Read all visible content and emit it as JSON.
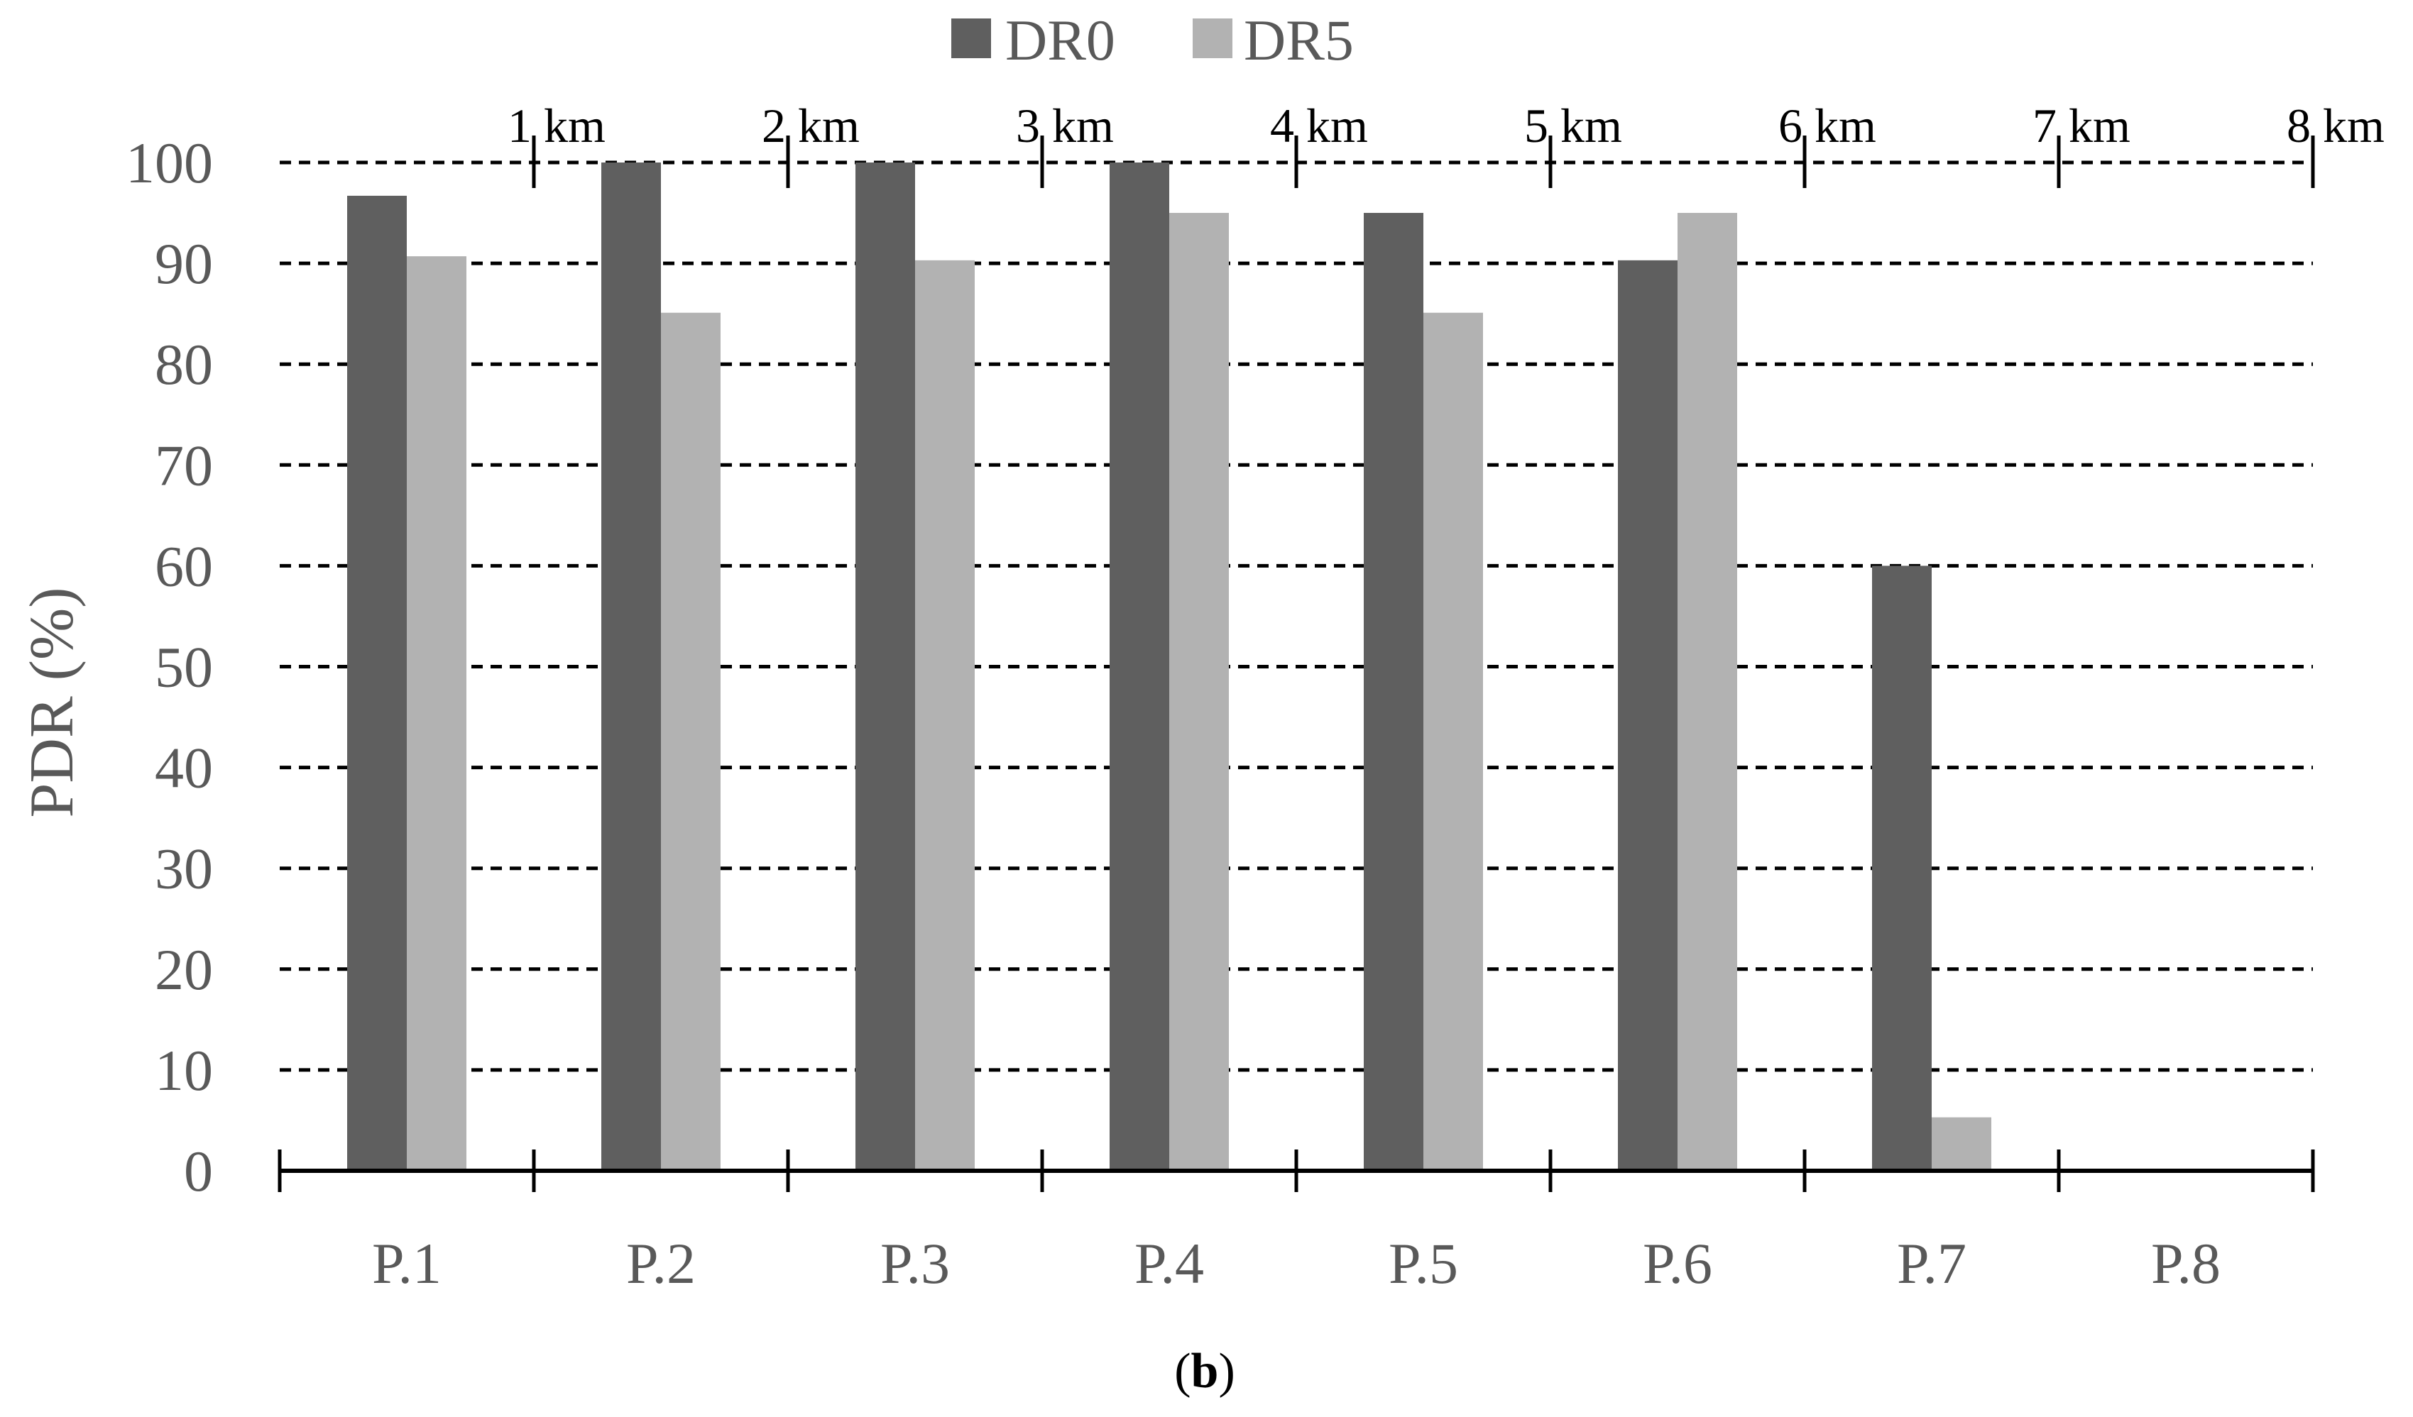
{
  "chart_data": {
    "type": "bar",
    "categories": [
      "P.1",
      "P.2",
      "P.3",
      "P.4",
      "P.5",
      "P.6",
      "P.7",
      "P.8"
    ],
    "series": [
      {
        "name": "DR0",
        "values": [
          96.7,
          100,
          100,
          100,
          95,
          90.3,
          60,
          0
        ],
        "color": "#5f5f5f"
      },
      {
        "name": "DR5",
        "values": [
          90.7,
          85.1,
          90.3,
          95,
          85.1,
          95,
          5.3,
          0
        ],
        "color": "#b2b2b2"
      }
    ],
    "ylabel": "PDR (%)",
    "ylim": [
      0,
      100
    ],
    "yticks": [
      "0",
      "10",
      "20",
      "30",
      "40",
      "50",
      "60",
      "70",
      "80",
      "90",
      "100"
    ],
    "grid": "horizontal dashed",
    "legend": "top-center",
    "distance_labels": [
      "1 km",
      "2 km",
      "3 km",
      "4 km",
      "5  km",
      "6 km",
      "7 km",
      "8 km"
    ],
    "caption": {
      "open": "(",
      "bold": "b",
      "close": ")"
    }
  }
}
